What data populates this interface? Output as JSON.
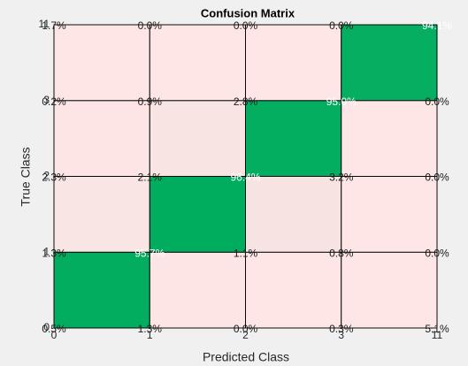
{
  "chart_data": {
    "type": "heatmap",
    "title": "Confusion Matrix",
    "x_label": "Predicted Class",
    "y_label": "True Class",
    "x_categories": [
      0,
      1,
      2,
      3,
      11
    ],
    "y_categories": [
      0,
      1,
      2,
      3,
      11
    ],
    "values": [
      [
        0.5,
        1.3,
        0.0,
        0.3,
        5.1
      ],
      [
        1.3,
        95.7,
        1.1,
        0.8,
        0.0
      ],
      [
        2.3,
        2.1,
        96.4,
        3.2,
        0.0
      ],
      [
        0.2,
        0.9,
        2.8,
        95.0,
        0.0
      ],
      [
        1.7,
        0.0,
        0.0,
        0.0,
        94.1
      ]
    ],
    "value_labels": [
      [
        "0.5%",
        "1.3%",
        "0.0%",
        "0.3%",
        "5.1%"
      ],
      [
        "1.3%",
        "95.7%",
        "1.1%",
        "0.8%",
        "0.0%"
      ],
      [
        "2.3%",
        "2.1%",
        "96.4%",
        "3.2%",
        "0.0%"
      ],
      [
        "0.2%",
        "0.9%",
        "2.8%",
        "95.0%",
        "0.0%"
      ],
      [
        "1.7%",
        "0.0%",
        "0.0%",
        "0.0%",
        "94.1%"
      ]
    ],
    "colors": [
      "#ffe6e6",
      "#00ad5f"
    ]
  }
}
